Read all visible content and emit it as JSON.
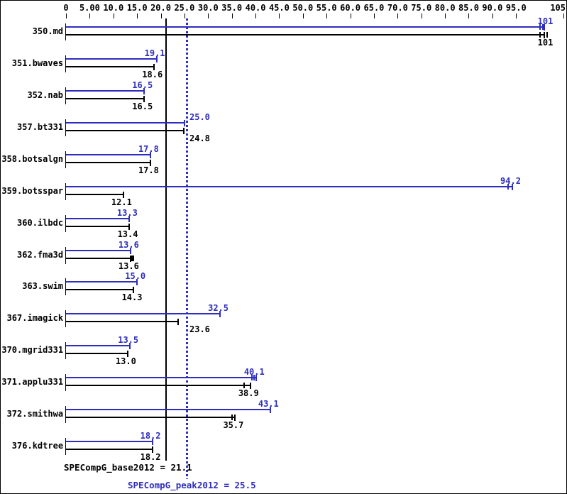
{
  "chart_data": {
    "type": "bar",
    "orientation": "horizontal",
    "title": "",
    "xlabel": "",
    "ylabel": "",
    "xlim": [
      0,
      105
    ],
    "grid": false,
    "colors": {
      "peak": "#2d2dbe",
      "base": "#000000"
    },
    "x_axis": {
      "ticks": [
        {
          "value": 0,
          "label": "0"
        },
        {
          "value": 5,
          "label": "5.00"
        },
        {
          "value": 10,
          "label": "10.0"
        },
        {
          "value": 15,
          "label": "15.0"
        },
        {
          "value": 20,
          "label": "20.0"
        },
        {
          "value": 25,
          "label": "25.0"
        },
        {
          "value": 30,
          "label": "30.0"
        },
        {
          "value": 35,
          "label": "35.0"
        },
        {
          "value": 40,
          "label": "40.0"
        },
        {
          "value": 45,
          "label": "45.0"
        },
        {
          "value": 50,
          "label": "50.0"
        },
        {
          "value": 55,
          "label": "55.0"
        },
        {
          "value": 60,
          "label": "60.0"
        },
        {
          "value": 65,
          "label": "65.0"
        },
        {
          "value": 70,
          "label": "70.0"
        },
        {
          "value": 75,
          "label": "75.0"
        },
        {
          "value": 80,
          "label": "80.0"
        },
        {
          "value": 85,
          "label": "85.0"
        },
        {
          "value": 90,
          "label": "90.0"
        },
        {
          "value": 95,
          "label": "95.0"
        },
        {
          "value": 105,
          "label": "105"
        }
      ]
    },
    "series": [
      {
        "name": "peak",
        "color": "#2d2dbe"
      },
      {
        "name": "base",
        "color": "#000000"
      }
    ],
    "benchmarks": [
      {
        "name": "350.md",
        "peak": 101,
        "peak_label": "101",
        "base": 101,
        "base_label": "101",
        "peak_marks": [
          100.0,
          100.6
        ],
        "base_marks": [
          100.0,
          101.5
        ]
      },
      {
        "name": "351.bwaves",
        "peak": 19.1,
        "peak_label": "19.1",
        "base": 18.6,
        "base_label": "18.6",
        "peak_marks": [],
        "base_marks": []
      },
      {
        "name": "352.nab",
        "peak": 16.5,
        "peak_label": "16.5",
        "base": 16.5,
        "base_label": "16.5",
        "peak_marks": [],
        "base_marks": []
      },
      {
        "name": "357.bt331",
        "peak": 25.0,
        "peak_label": "25.0",
        "base": 24.8,
        "base_label": "24.8",
        "peak_marks": [],
        "base_marks": []
      },
      {
        "name": "358.botsalgn",
        "peak": 17.8,
        "peak_label": "17.8",
        "base": 17.8,
        "base_label": "17.8",
        "peak_marks": [],
        "base_marks": []
      },
      {
        "name": "359.botsspar",
        "peak": 94.2,
        "peak_label": "94.2",
        "base": 12.1,
        "base_label": "12.1",
        "peak_marks": [
          93.3
        ],
        "base_marks": []
      },
      {
        "name": "360.ilbdc",
        "peak": 13.3,
        "peak_label": "13.3",
        "base": 13.4,
        "base_label": "13.4",
        "peak_marks": [],
        "base_marks": []
      },
      {
        "name": "362.fma3d",
        "peak": 13.6,
        "peak_label": "13.6",
        "base": 13.6,
        "base_label": "13.6",
        "peak_marks": [],
        "base_marks": [
          13.9,
          14.25
        ]
      },
      {
        "name": "363.swim",
        "peak": 15.0,
        "peak_label": "15.0",
        "base": 14.3,
        "base_label": "14.3",
        "peak_marks": [],
        "base_marks": []
      },
      {
        "name": "367.imagick",
        "peak": 32.5,
        "peak_label": "32.5",
        "base": 23.6,
        "base_label": "23.6",
        "peak_marks": [],
        "base_marks": []
      },
      {
        "name": "370.mgrid331",
        "peak": 13.5,
        "peak_label": "13.5",
        "base": 13.0,
        "base_label": "13.0",
        "peak_marks": [],
        "base_marks": []
      },
      {
        "name": "371.applu331",
        "peak": 40.1,
        "peak_label": "40.1",
        "base": 38.9,
        "base_label": "38.9",
        "peak_marks": [
          39.3,
          39.7
        ],
        "base_marks": [
          37.6
        ]
      },
      {
        "name": "372.smithwa",
        "peak": 43.1,
        "peak_label": "43.1",
        "base": 35.7,
        "base_label": "35.7",
        "peak_marks": [],
        "base_marks": [
          35.1
        ]
      },
      {
        "name": "376.kdtree",
        "peak": 18.2,
        "peak_label": "18.2",
        "base": 18.2,
        "base_label": "18.2",
        "peak_marks": [],
        "base_marks": []
      }
    ],
    "reference_lines": [
      {
        "name": "base",
        "value": 21.1,
        "style": "solid",
        "color": "#000000",
        "label": "SPECompG_base2012 = 21.1"
      },
      {
        "name": "peak",
        "value": 25.5,
        "style": "dotted",
        "color": "#2d2dbe",
        "label": "SPECompG_peak2012 = 25.5"
      }
    ]
  }
}
